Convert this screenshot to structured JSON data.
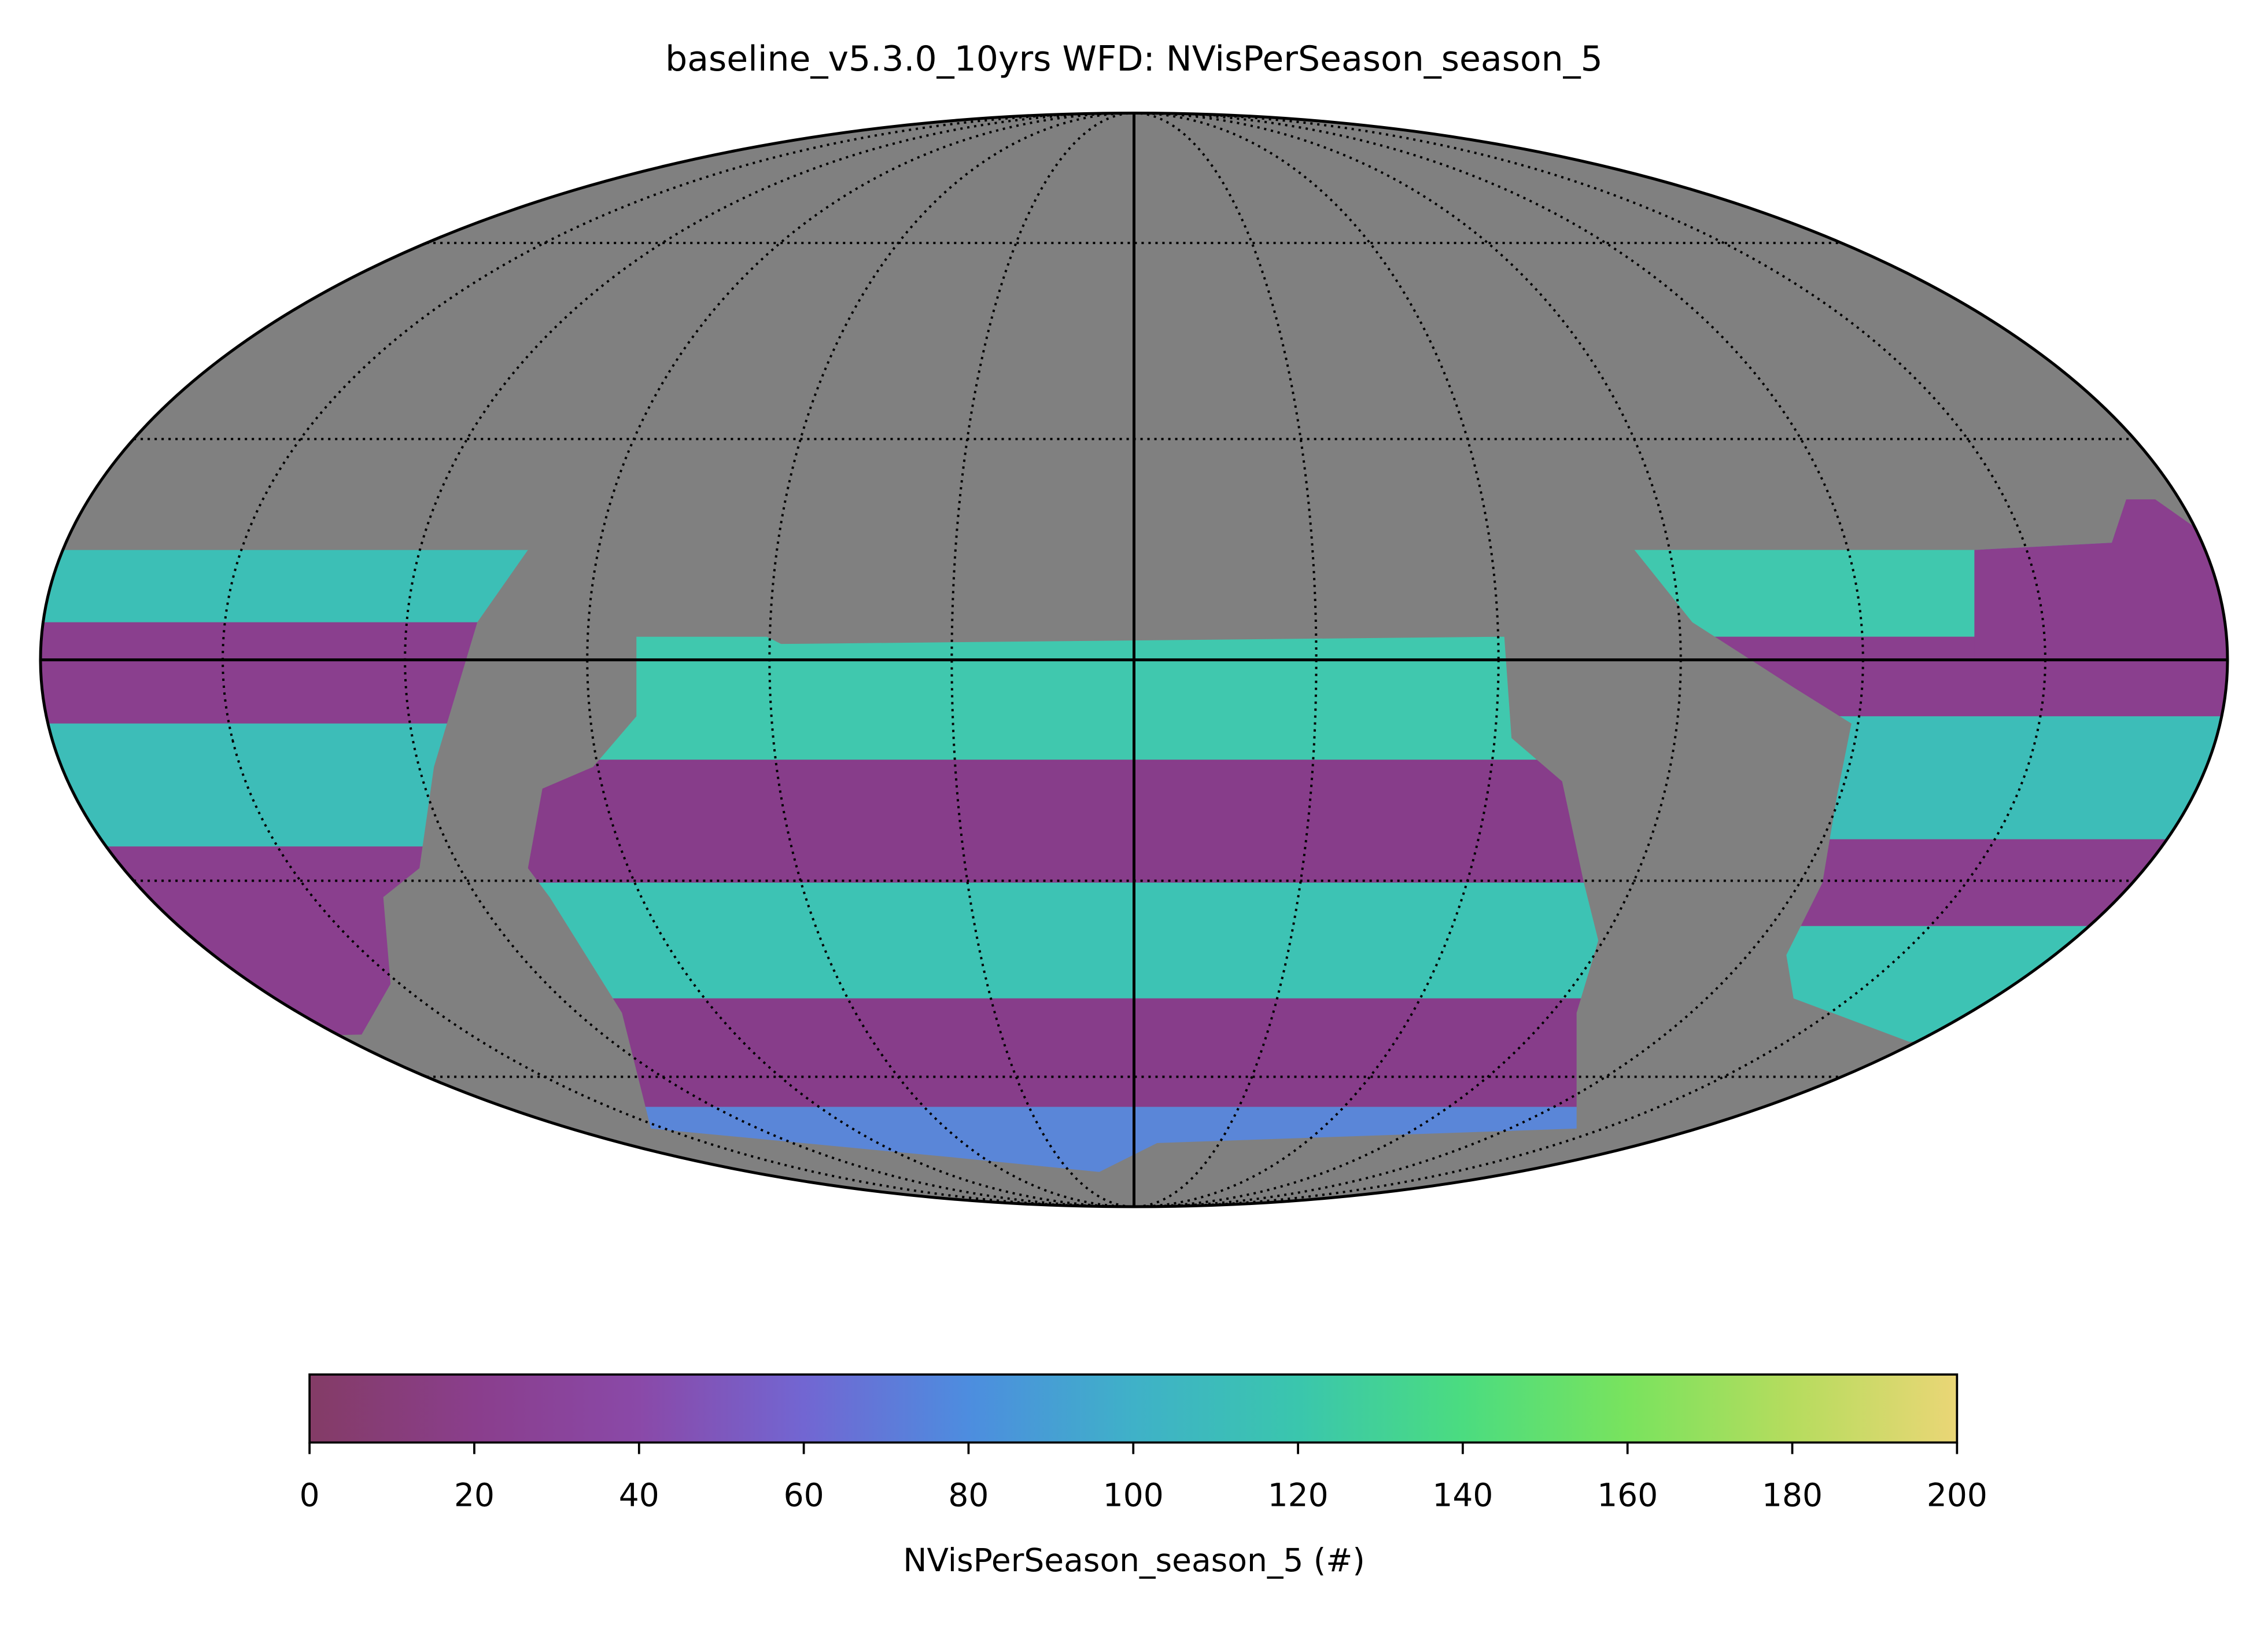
{
  "chart_data": {
    "type": "skymap",
    "title": "baseline_v5.3.0_10yrs WFD: NVisPerSeason_season_5",
    "colorbar_label": "NVisPerSeason_season_5 (#)",
    "clim": [
      0,
      200
    ],
    "cticks": [
      0,
      20,
      40,
      60,
      80,
      100,
      120,
      140,
      160,
      180,
      200
    ],
    "colormap": [
      "#843c66",
      "#8a3e8c",
      "#8a49a8",
      "#7266d2",
      "#4d8ddf",
      "#3fb1c8",
      "#3ac6ad",
      "#4bdc80",
      "#79e35e",
      "#b6dc5e",
      "#ead676"
    ]
  }
}
